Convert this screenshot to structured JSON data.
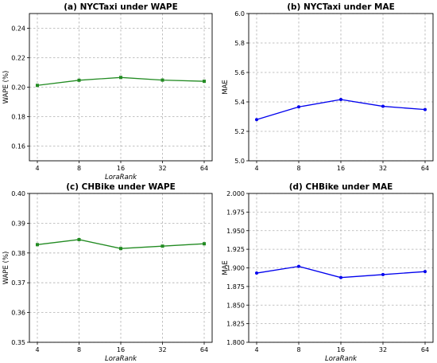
{
  "chart_data": [
    {
      "type": "line",
      "title": "(a) NYCTaxi under WAPE",
      "xlabel": "LoraRank",
      "ylabel": "WAPE (%)",
      "categories": [
        "4",
        "8",
        "16",
        "32",
        "64"
      ],
      "series": [
        {
          "values": [
            0.2012,
            0.2047,
            0.2066,
            0.2048,
            0.204
          ],
          "color": "#228B22",
          "marker": "square"
        }
      ],
      "ylim": [
        0.15,
        0.25
      ],
      "yticks": [
        "0.16",
        "0.18",
        "0.20",
        "0.22",
        "0.24"
      ],
      "ytick_values": [
        0.16,
        0.18,
        0.2,
        0.22,
        0.24
      ],
      "grid": true
    },
    {
      "type": "line",
      "title": "(b) NYCTaxi under MAE",
      "xlabel": "",
      "ylabel": "MAE",
      "categories": [
        "4",
        "8",
        "16",
        "32",
        "64"
      ],
      "series": [
        {
          "values": [
            5.28,
            5.366,
            5.416,
            5.37,
            5.348
          ],
          "color": "#0000ee",
          "marker": "circle"
        }
      ],
      "ylim": [
        5.0,
        6.0
      ],
      "yticks": [
        "5.0",
        "5.2",
        "5.4",
        "5.6",
        "5.8",
        "6.0"
      ],
      "ytick_values": [
        5.0,
        5.2,
        5.4,
        5.6,
        5.8,
        6.0
      ],
      "grid": true
    },
    {
      "type": "line",
      "title": "(c) CHBike under WAPE",
      "xlabel": "LoraRank",
      "ylabel": "WAPE (%)",
      "categories": [
        "4",
        "8",
        "16",
        "32",
        "64"
      ],
      "series": [
        {
          "values": [
            0.3828,
            0.3845,
            0.3815,
            0.3823,
            0.3831
          ],
          "color": "#228B22",
          "marker": "square"
        }
      ],
      "ylim": [
        0.35,
        0.4
      ],
      "yticks": [
        "0.35",
        "0.36",
        "0.37",
        "0.38",
        "0.39",
        "0.40"
      ],
      "ytick_values": [
        0.35,
        0.36,
        0.37,
        0.38,
        0.39,
        0.4
      ],
      "grid": true
    },
    {
      "type": "line",
      "title": "(d) CHBike under MAE",
      "xlabel": "LoraRank",
      "ylabel": "MAE",
      "categories": [
        "4",
        "8",
        "16",
        "32",
        "64"
      ],
      "series": [
        {
          "values": [
            1.893,
            1.902,
            1.887,
            1.891,
            1.895
          ],
          "color": "#0000ee",
          "marker": "circle"
        }
      ],
      "ylim": [
        1.8,
        2.0
      ],
      "yticks": [
        "1.800",
        "1.825",
        "1.850",
        "1.875",
        "1.900",
        "1.925",
        "1.950",
        "1.975",
        "2.000"
      ],
      "ytick_values": [
        1.8,
        1.825,
        1.85,
        1.875,
        1.9,
        1.925,
        1.95,
        1.975,
        2.0
      ],
      "grid": true
    }
  ]
}
